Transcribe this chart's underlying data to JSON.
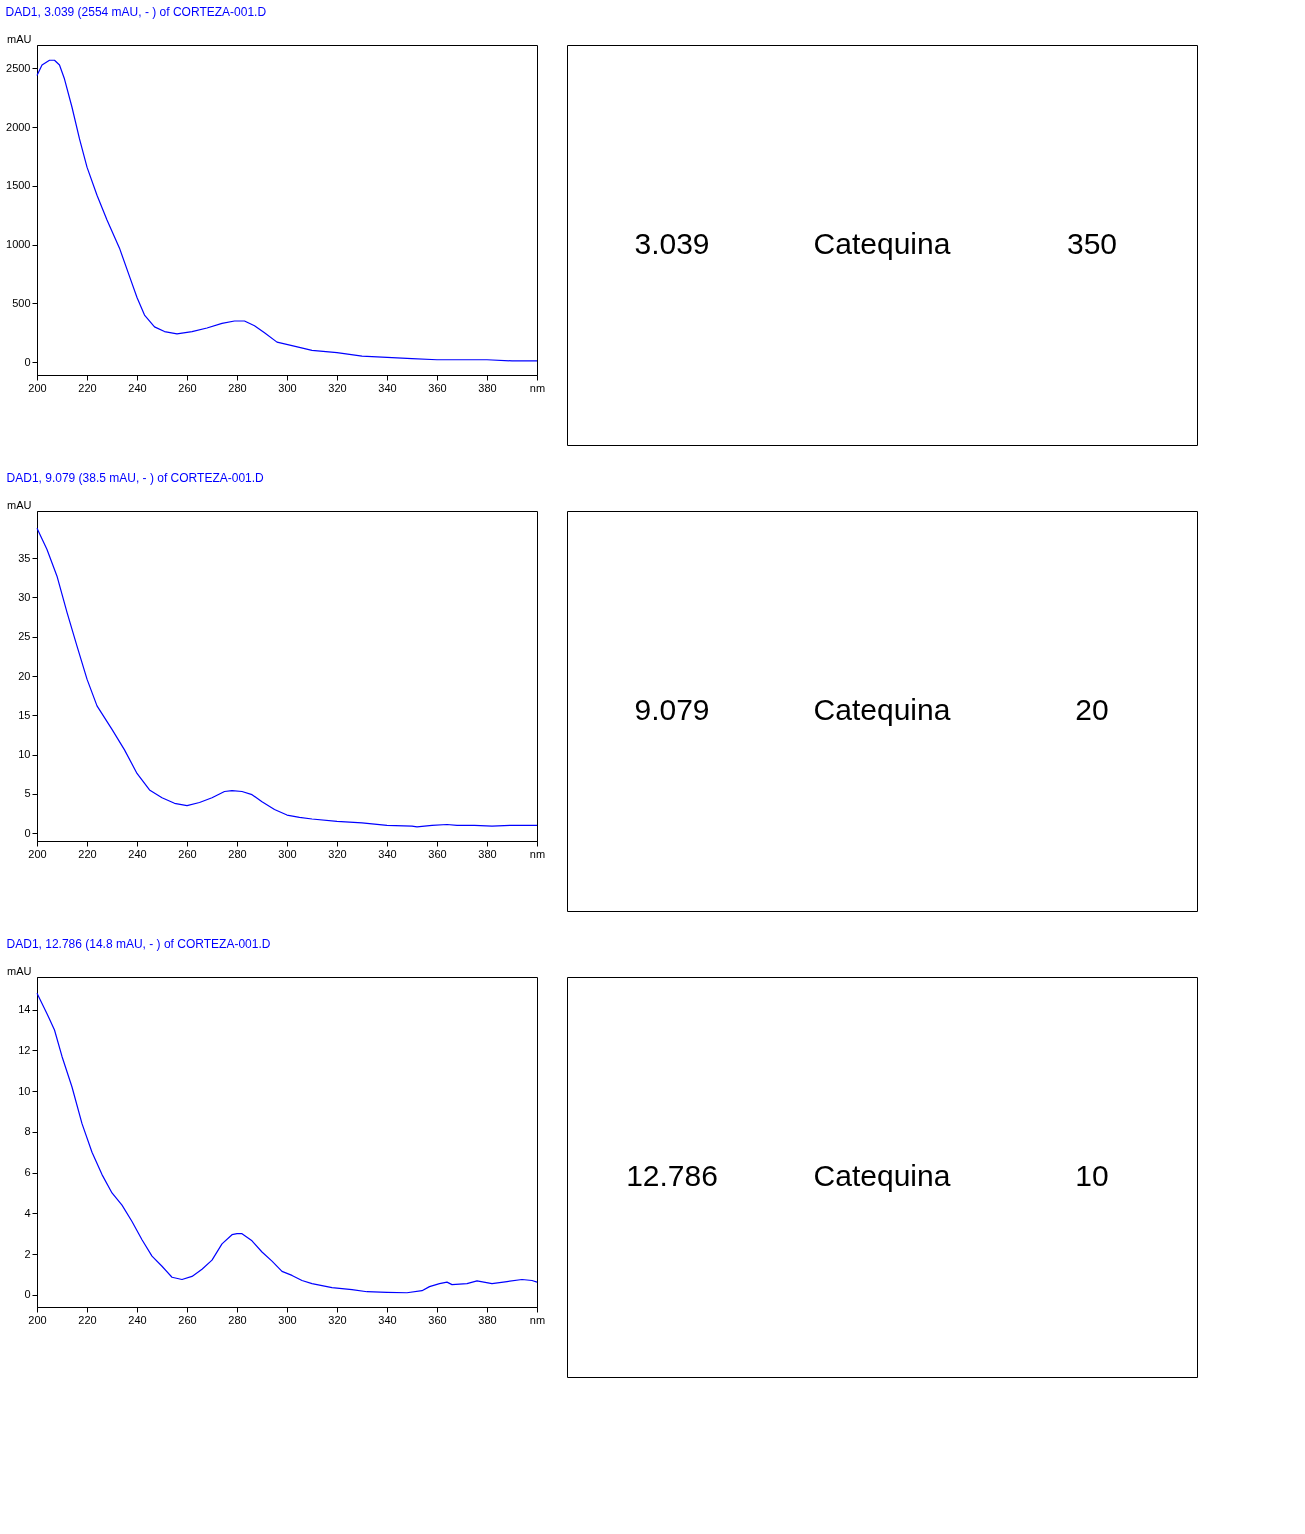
{
  "chart_data": [
    {
      "type": "line",
      "title": "DAD1, 3.039 (2554 mAU, - ) of CORTEZA-001.D",
      "ylabel": "mAU",
      "xlim": [
        200,
        400
      ],
      "xticks": [
        200,
        220,
        240,
        260,
        280,
        300,
        320,
        340,
        360,
        380,
        {
          "value": 400,
          "label": "nm"
        }
      ],
      "ylim": [
        -110,
        2700
      ],
      "yticks": [
        0,
        500,
        1000,
        1500,
        2000,
        2500
      ],
      "grid": false,
      "series": [
        {
          "color": "#0000ff",
          "x": [
            200,
            202,
            205,
            207,
            209,
            211,
            214,
            217,
            220,
            224,
            228,
            233,
            237,
            240,
            243,
            247,
            251,
            256,
            262,
            268,
            274,
            279,
            283,
            287,
            291,
            296,
            302,
            310,
            320,
            330,
            340,
            350,
            360,
            370,
            380,
            390,
            400
          ],
          "values": [
            2440,
            2530,
            2570,
            2570,
            2530,
            2410,
            2170,
            1900,
            1660,
            1420,
            1210,
            970,
            730,
            550,
            400,
            300,
            260,
            240,
            260,
            290,
            330,
            350,
            350,
            310,
            250,
            170,
            140,
            100,
            80,
            50,
            40,
            30,
            20,
            20,
            20,
            10,
            10
          ]
        }
      ]
    },
    {
      "type": "other",
      "annotations": [
        "3.039",
        "Catequina",
        "350"
      ]
    },
    {
      "type": "line",
      "title": "DAD1, 9.079 (38.5 mAU, - ) of CORTEZA-001.D",
      "ylabel": "mAU",
      "xlim": [
        200,
        400
      ],
      "xticks": [
        200,
        220,
        240,
        260,
        280,
        300,
        320,
        340,
        360,
        380,
        {
          "value": 400,
          "label": "nm"
        }
      ],
      "ylim": [
        -1,
        41
      ],
      "yticks": [
        0,
        5,
        10,
        15,
        20,
        25,
        30,
        35
      ],
      "grid": false,
      "series": [
        {
          "color": "#0000ff",
          "x": [
            200,
            204,
            208,
            212,
            216,
            220,
            224,
            230,
            235,
            240,
            245,
            250,
            255,
            260,
            265,
            270,
            275,
            278,
            282,
            286,
            290,
            295,
            300,
            305,
            310,
            320,
            330,
            340,
            350,
            352,
            358,
            364,
            368,
            375,
            382,
            390,
            400
          ],
          "values": [
            38.8,
            36.1,
            32.7,
            28.1,
            23.8,
            19.6,
            16.2,
            13.2,
            10.6,
            7.6,
            5.5,
            4.5,
            3.8,
            3.5,
            3.9,
            4.5,
            5.3,
            5.4,
            5.3,
            4.9,
            4.0,
            3.0,
            2.3,
            2.0,
            1.8,
            1.5,
            1.3,
            1.0,
            0.9,
            0.8,
            1.0,
            1.1,
            1.0,
            1.0,
            0.9,
            1.0,
            1.0
          ]
        }
      ]
    },
    {
      "type": "other",
      "annotations": [
        "9.079",
        "Catequina",
        "20"
      ]
    },
    {
      "type": "line",
      "title": "DAD1, 12.786 (14.8 mAU, - ) of CORTEZA-001.D",
      "ylabel": "mAU",
      "xlim": [
        200,
        400
      ],
      "xticks": [
        200,
        220,
        240,
        260,
        280,
        300,
        320,
        340,
        360,
        380,
        {
          "value": 400,
          "label": "nm"
        }
      ],
      "ylim": [
        -0.6,
        15.6
      ],
      "yticks": [
        0,
        2,
        4,
        6,
        8,
        10,
        12,
        14
      ],
      "grid": false,
      "series": [
        {
          "color": "#0000ff",
          "x": [
            200,
            204,
            207,
            210,
            214,
            218,
            222,
            226,
            230,
            234,
            238,
            242,
            246,
            250,
            254,
            258,
            262,
            266,
            270,
            274,
            278,
            280,
            282,
            286,
            290,
            294,
            298,
            302,
            306,
            310,
            318,
            326,
            332,
            340,
            348,
            354,
            357,
            361,
            364,
            366,
            372,
            376,
            382,
            388,
            394,
            398,
            400
          ],
          "values": [
            14.8,
            13.8,
            13.0,
            11.7,
            10.2,
            8.4,
            7.0,
            5.9,
            5.0,
            4.4,
            3.6,
            2.7,
            1.9,
            1.4,
            0.86,
            0.75,
            0.9,
            1.25,
            1.7,
            2.5,
            2.95,
            3.0,
            3.0,
            2.65,
            2.1,
            1.65,
            1.15,
            0.95,
            0.7,
            0.55,
            0.35,
            0.25,
            0.15,
            0.12,
            0.1,
            0.2,
            0.4,
            0.55,
            0.62,
            0.5,
            0.55,
            0.68,
            0.55,
            0.65,
            0.75,
            0.7,
            0.62
          ]
        }
      ]
    },
    {
      "type": "other",
      "annotations": [
        "12.786",
        "Catequina",
        "10"
      ]
    }
  ]
}
